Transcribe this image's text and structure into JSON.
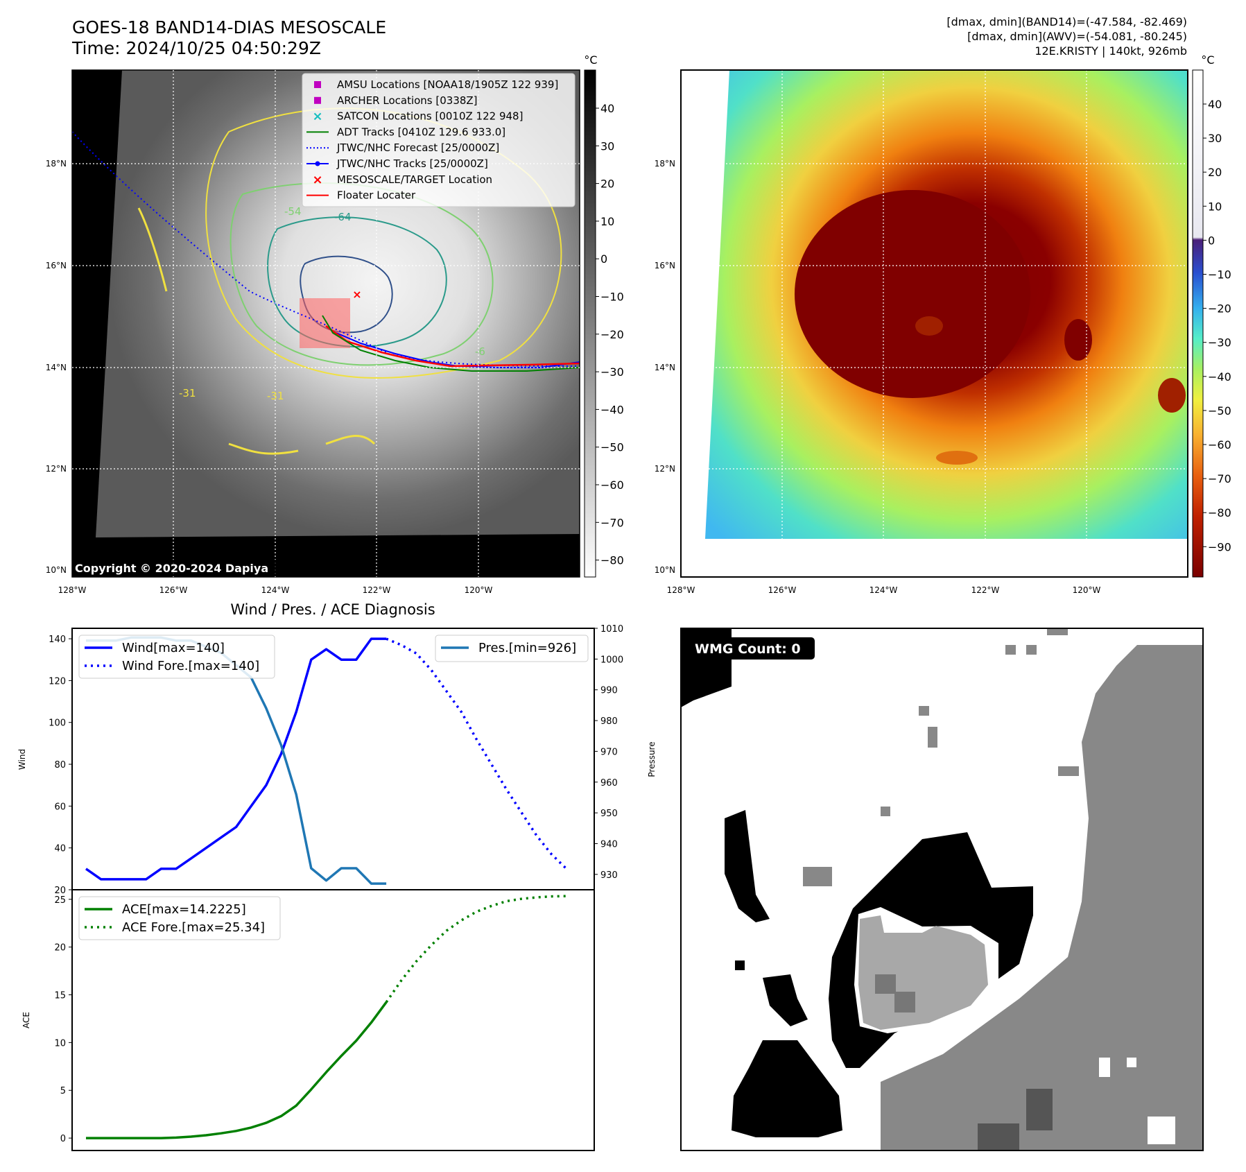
{
  "header": {
    "title_line1": "GOES-18 BAND14-DIAS MESOSCALE",
    "title_line2": "Time: 2024/10/25 04:50:29Z",
    "stats_line1": "[dmax, dmin](BAND14)=(-47.584, -82.469)",
    "stats_line2": "[dmax, dmin](AWV)=(-54.081, -80.245)",
    "stats_line3": "12E.KRISTY | 140kt, 926mb"
  },
  "map_axes": {
    "lat_labels": [
      "18°N",
      "16°N",
      "14°N",
      "12°N",
      "10°N"
    ],
    "lon_labels": [
      "128°W",
      "126°W",
      "124°W",
      "122°W",
      "120°W"
    ],
    "colorbar_unit": "°C",
    "ir_colorbar_ticks": [
      "40",
      "30",
      "20",
      "10",
      "0",
      "−10",
      "−20",
      "−30",
      "−40",
      "−50",
      "−60",
      "−70",
      "−80"
    ],
    "enh_colorbar_ticks": [
      "40",
      "30",
      "20",
      "10",
      "0",
      "−10",
      "−20",
      "−30",
      "−40",
      "−50",
      "−60",
      "−70",
      "−80",
      "−90"
    ],
    "contour_labels": [
      "-54",
      "-64",
      "-31",
      "-31",
      "-6"
    ]
  },
  "ir_panel": {
    "copyright": "Copyright © 2020-2024 Dapiya",
    "legend": [
      {
        "label": "AMSU Locations [NOAA18/1905Z 122 939]",
        "color": "#c000c0",
        "marker": "square"
      },
      {
        "label": "ARCHER Locations [0338Z]",
        "color": "#c000c0",
        "marker": "square"
      },
      {
        "label": "SATCON Locations [0010Z 122 948]",
        "color": "#17bfbf",
        "marker": "x"
      },
      {
        "label": "ADT Tracks [0410Z 129.6 933.0]",
        "color": "#008000",
        "marker": "line"
      },
      {
        "label": "JTWC/NHC Forecast [25/0000Z]",
        "color": "#0000ff",
        "marker": "dotted"
      },
      {
        "label": "JTWC/NHC Tracks [25/0000Z]",
        "color": "#0000ff",
        "marker": "line-dot"
      },
      {
        "label": "MESOSCALE/TARGET Location",
        "color": "#ff0000",
        "marker": "x"
      },
      {
        "label": "Floater Locater",
        "color": "#ff0000",
        "marker": "line"
      }
    ]
  },
  "wmg_panel": {
    "label": "WMG Count: 0"
  },
  "chart_data": [
    {
      "type": "line",
      "title": "Wind / Pres. / ACE Diagnosis",
      "ylabel": "Wind",
      "ylabel_right": "Pressure",
      "ylim": [
        20,
        145
      ],
      "ylim_right": [
        925,
        1010
      ],
      "yticks": [
        20,
        40,
        60,
        80,
        100,
        120,
        140
      ],
      "yticks_right": [
        930,
        940,
        950,
        960,
        970,
        980,
        990,
        1000,
        1010
      ],
      "x": [
        0,
        1,
        2,
        3,
        4,
        5,
        6,
        7,
        8,
        9,
        10,
        11,
        12,
        13,
        14,
        15,
        16,
        17,
        18,
        19,
        20
      ],
      "series": [
        {
          "name": "Wind[max=140]",
          "color": "#0000ff",
          "style": "solid",
          "values": [
            30,
            25,
            25,
            25,
            25,
            30,
            30,
            35,
            40,
            45,
            50,
            60,
            70,
            85,
            105,
            130,
            135,
            130,
            130,
            140,
            140
          ]
        },
        {
          "name": "Wind Fore.[max=140]",
          "color": "#0000ff",
          "style": "dotted",
          "x": [
            20,
            21,
            22,
            23,
            24,
            25,
            26,
            27,
            28,
            29,
            30,
            31,
            32
          ],
          "values": [
            140,
            137,
            133,
            125,
            115,
            105,
            92,
            80,
            68,
            57,
            46,
            37,
            30
          ]
        },
        {
          "name": "Pres.[min=926]",
          "color": "#1f77b4",
          "style": "solid",
          "axis": "right",
          "values": [
            1006,
            1006,
            1006,
            1007,
            1007,
            1007,
            1006,
            1006,
            1004,
            1002,
            998,
            994,
            984,
            972,
            956,
            932,
            928,
            932,
            932,
            927,
            927
          ]
        }
      ]
    },
    {
      "type": "line",
      "ylabel": "ACE",
      "ylim": [
        -1.3,
        26
      ],
      "yticks": [
        0,
        5,
        10,
        15,
        20,
        25
      ],
      "series": [
        {
          "name": "ACE[max=14.2225]",
          "color": "#008000",
          "style": "solid",
          "x": [
            0,
            1,
            2,
            3,
            4,
            5,
            6,
            7,
            8,
            9,
            10,
            11,
            12,
            13,
            14,
            15,
            16,
            17,
            18,
            19,
            20
          ],
          "values": [
            0,
            0,
            0,
            0,
            0,
            0,
            0.05,
            0.15,
            0.3,
            0.5,
            0.75,
            1.1,
            1.6,
            2.3,
            3.4,
            5.1,
            6.9,
            8.6,
            10.2,
            12.1,
            14.2225
          ]
        },
        {
          "name": "ACE Fore.[max=25.34]",
          "color": "#008000",
          "style": "dotted",
          "x": [
            20,
            21,
            22,
            23,
            24,
            25,
            26,
            27,
            28,
            29,
            30,
            31,
            32
          ],
          "values": [
            14.2225,
            16.5,
            18.5,
            20.2,
            21.7,
            22.8,
            23.7,
            24.3,
            24.8,
            25.05,
            25.2,
            25.3,
            25.34
          ]
        }
      ]
    }
  ]
}
